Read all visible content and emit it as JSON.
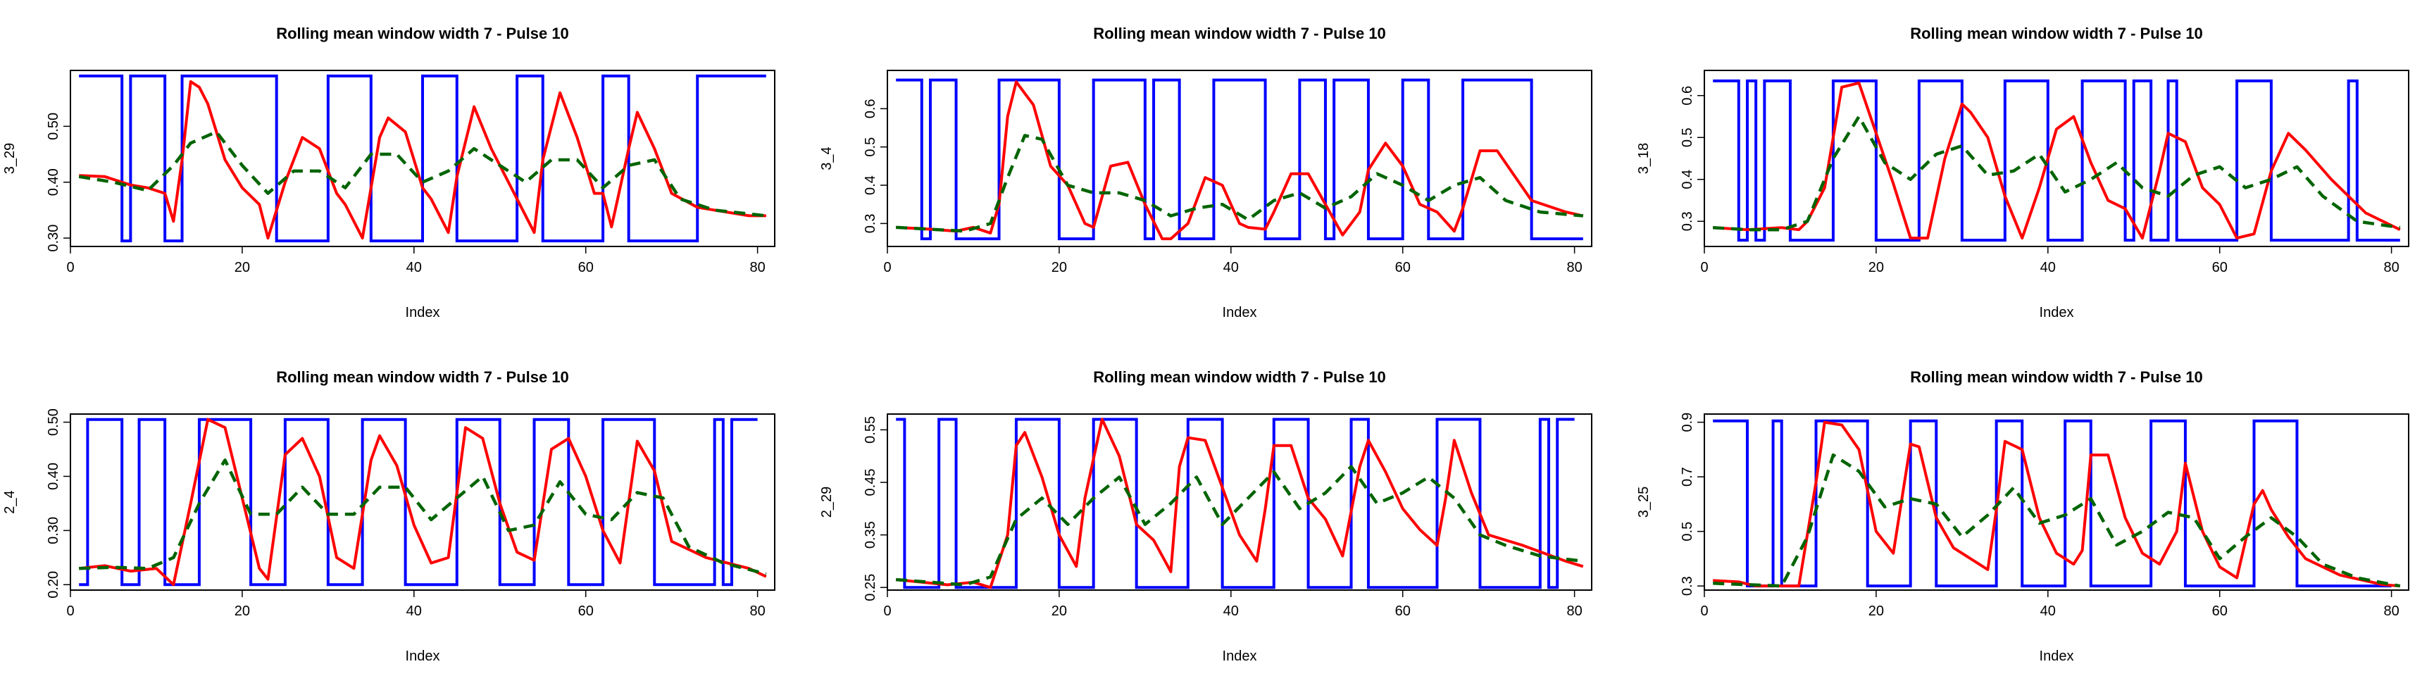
{
  "chart_data": [
    {
      "type": "line",
      "title": "Rolling mean window width 7 - Pulse 10",
      "xlabel": "Index",
      "ylabel": "3_29",
      "xlim": [
        0,
        82
      ],
      "ylim": [
        0.285,
        0.6
      ],
      "x_ticks": [
        0,
        20,
        40,
        60,
        80
      ],
      "y_ticks": [
        0.3,
        0.4,
        0.5
      ],
      "y_tick_labels": [
        "0.30",
        "0.40",
        "0.50"
      ],
      "pulse": {
        "low": 0.295,
        "high": 0.59,
        "trans": [
          1,
          6,
          7,
          11,
          13,
          24,
          30,
          35,
          41,
          45,
          52,
          55,
          62,
          65,
          73,
          81
        ],
        "start_state": 1
      },
      "red": {
        "x": [
          1,
          4,
          7,
          9,
          11,
          12,
          13,
          14,
          15,
          16,
          18,
          20,
          22,
          23,
          25,
          27,
          29,
          31,
          32,
          34,
          36,
          37,
          39,
          41,
          42,
          44,
          45,
          47,
          49,
          51,
          52,
          54,
          55,
          57,
          59,
          61,
          62,
          63,
          65,
          66,
          68,
          70,
          73,
          75,
          79,
          81
        ],
        "y": [
          0.412,
          0.41,
          0.395,
          0.39,
          0.38,
          0.33,
          0.44,
          0.58,
          0.57,
          0.54,
          0.44,
          0.39,
          0.36,
          0.3,
          0.4,
          0.48,
          0.46,
          0.38,
          0.36,
          0.3,
          0.48,
          0.515,
          0.49,
          0.39,
          0.37,
          0.31,
          0.41,
          0.535,
          0.46,
          0.4,
          0.37,
          0.31,
          0.44,
          0.56,
          0.48,
          0.38,
          0.38,
          0.32,
          0.46,
          0.525,
          0.46,
          0.38,
          0.355,
          0.35,
          0.34,
          0.34
        ]
      },
      "green": {
        "x": [
          1,
          5,
          9,
          12,
          14,
          17,
          20,
          23,
          26,
          29,
          32,
          35,
          38,
          41,
          44,
          47,
          50,
          53,
          56,
          59,
          62,
          65,
          68,
          71,
          75,
          81
        ],
        "y": [
          0.41,
          0.4,
          0.385,
          0.43,
          0.47,
          0.49,
          0.43,
          0.38,
          0.42,
          0.42,
          0.39,
          0.45,
          0.45,
          0.4,
          0.42,
          0.46,
          0.43,
          0.4,
          0.44,
          0.44,
          0.39,
          0.43,
          0.44,
          0.37,
          0.35,
          0.34
        ]
      }
    },
    {
      "type": "line",
      "title": "Rolling mean window width 7 - Pulse 10",
      "xlabel": "Index",
      "ylabel": "3_4",
      "xlim": [
        0,
        82
      ],
      "ylim": [
        0.24,
        0.7
      ],
      "x_ticks": [
        0,
        20,
        40,
        60,
        80
      ],
      "y_ticks": [
        0.3,
        0.4,
        0.5,
        0.6
      ],
      "y_tick_labels": [
        "0.3",
        "0.4",
        "0.5",
        "0.6"
      ],
      "pulse": {
        "low": 0.26,
        "high": 0.675,
        "trans": [
          1,
          4,
          5,
          8,
          13,
          20,
          24,
          30,
          31,
          34,
          38,
          44,
          48,
          51,
          52,
          56,
          60,
          63,
          67,
          75,
          81
        ],
        "start_state": 1
      },
      "red": {
        "x": [
          1,
          5,
          8,
          10,
          12,
          13,
          14,
          15,
          17,
          19,
          21,
          23,
          24,
          26,
          28,
          30,
          32,
          33,
          35,
          37,
          39,
          41,
          42,
          44,
          45,
          47,
          49,
          51,
          53,
          55,
          56,
          58,
          60,
          62,
          64,
          66,
          67,
          69,
          71,
          75,
          79,
          81
        ],
        "y": [
          0.29,
          0.285,
          0.28,
          0.29,
          0.275,
          0.35,
          0.58,
          0.67,
          0.61,
          0.45,
          0.4,
          0.3,
          0.29,
          0.45,
          0.46,
          0.35,
          0.26,
          0.26,
          0.3,
          0.42,
          0.4,
          0.3,
          0.29,
          0.285,
          0.33,
          0.43,
          0.43,
          0.35,
          0.27,
          0.33,
          0.44,
          0.51,
          0.45,
          0.35,
          0.33,
          0.28,
          0.34,
          0.49,
          0.49,
          0.36,
          0.33,
          0.32
        ]
      },
      "green": {
        "x": [
          1,
          5,
          9,
          12,
          14,
          16,
          18,
          21,
          24,
          27,
          30,
          33,
          36,
          39,
          42,
          45,
          48,
          51,
          54,
          57,
          60,
          63,
          66,
          69,
          72,
          76,
          81
        ],
        "y": [
          0.29,
          0.285,
          0.28,
          0.3,
          0.42,
          0.53,
          0.52,
          0.4,
          0.38,
          0.38,
          0.36,
          0.32,
          0.34,
          0.35,
          0.31,
          0.36,
          0.38,
          0.34,
          0.37,
          0.43,
          0.4,
          0.36,
          0.4,
          0.42,
          0.36,
          0.33,
          0.32
        ]
      }
    },
    {
      "type": "line",
      "title": "Rolling mean window width 7 - Pulse 10",
      "xlabel": "Index",
      "ylabel": "3_18",
      "xlim": [
        0,
        82
      ],
      "ylim": [
        0.24,
        0.66
      ],
      "x_ticks": [
        0,
        20,
        40,
        60,
        80
      ],
      "y_ticks": [
        0.3,
        0.4,
        0.5,
        0.6
      ],
      "y_tick_labels": [
        "0.3",
        "0.4",
        "0.5",
        "0.6"
      ],
      "pulse": {
        "low": 0.255,
        "high": 0.635,
        "trans": [
          1,
          4,
          5,
          6,
          7,
          10,
          15,
          20,
          25,
          30,
          35,
          40,
          44,
          49,
          50,
          52,
          54,
          55,
          62,
          66,
          75,
          76,
          81
        ],
        "start_state": 1
      },
      "red": {
        "x": [
          1,
          5,
          9,
          11,
          12,
          14,
          16,
          18,
          20,
          22,
          24,
          26,
          28,
          30,
          31,
          33,
          35,
          37,
          39,
          41,
          43,
          45,
          47,
          49,
          51,
          53,
          54,
          56,
          58,
          60,
          62,
          64,
          66,
          68,
          70,
          73,
          77,
          81
        ],
        "y": [
          0.285,
          0.28,
          0.285,
          0.28,
          0.3,
          0.38,
          0.62,
          0.63,
          0.51,
          0.39,
          0.26,
          0.26,
          0.45,
          0.58,
          0.56,
          0.5,
          0.36,
          0.26,
          0.38,
          0.52,
          0.55,
          0.44,
          0.35,
          0.33,
          0.26,
          0.42,
          0.51,
          0.49,
          0.38,
          0.34,
          0.26,
          0.27,
          0.42,
          0.51,
          0.47,
          0.4,
          0.32,
          0.28
        ]
      },
      "green": {
        "x": [
          1,
          5,
          9,
          12,
          15,
          18,
          21,
          24,
          27,
          30,
          33,
          36,
          39,
          42,
          45,
          48,
          51,
          54,
          57,
          60,
          63,
          66,
          69,
          72,
          76,
          81
        ],
        "y": [
          0.285,
          0.28,
          0.28,
          0.3,
          0.45,
          0.55,
          0.44,
          0.4,
          0.46,
          0.48,
          0.41,
          0.42,
          0.46,
          0.37,
          0.4,
          0.44,
          0.38,
          0.36,
          0.41,
          0.43,
          0.38,
          0.4,
          0.43,
          0.36,
          0.3,
          0.285
        ]
      }
    },
    {
      "type": "line",
      "title": "Rolling mean window width 7 - Pulse 10",
      "xlabel": "Index",
      "ylabel": "2_4",
      "xlim": [
        0,
        82
      ],
      "ylim": [
        0.19,
        0.515
      ],
      "x_ticks": [
        0,
        20,
        40,
        60,
        80
      ],
      "y_ticks": [
        0.2,
        0.3,
        0.4,
        0.5
      ],
      "y_tick_labels": [
        "0.20",
        "0.30",
        "0.40",
        "0.50"
      ],
      "pulse": {
        "low": 0.2,
        "high": 0.505,
        "trans": [
          1,
          2,
          6,
          8,
          11,
          15,
          21,
          25,
          30,
          34,
          39,
          45,
          50,
          54,
          58,
          62,
          68,
          75,
          76,
          77,
          80
        ],
        "start_state": 0
      },
      "red": {
        "x": [
          1,
          4,
          7,
          10,
          12,
          14,
          16,
          18,
          20,
          22,
          23,
          25,
          27,
          29,
          31,
          33,
          35,
          36,
          38,
          40,
          42,
          44,
          46,
          48,
          50,
          52,
          54,
          56,
          58,
          60,
          62,
          64,
          66,
          68,
          70,
          74,
          79,
          81
        ],
        "y": [
          0.23,
          0.235,
          0.225,
          0.23,
          0.2,
          0.35,
          0.505,
          0.49,
          0.36,
          0.23,
          0.21,
          0.44,
          0.47,
          0.4,
          0.25,
          0.23,
          0.43,
          0.475,
          0.42,
          0.31,
          0.24,
          0.25,
          0.49,
          0.47,
          0.35,
          0.26,
          0.245,
          0.45,
          0.47,
          0.4,
          0.3,
          0.24,
          0.465,
          0.41,
          0.28,
          0.25,
          0.23,
          0.215
        ]
      },
      "green": {
        "x": [
          1,
          5,
          9,
          12,
          15,
          18,
          21,
          24,
          27,
          30,
          33,
          36,
          39,
          42,
          45,
          48,
          51,
          54,
          57,
          60,
          63,
          66,
          69,
          72,
          76,
          81
        ],
        "y": [
          0.23,
          0.232,
          0.23,
          0.25,
          0.35,
          0.43,
          0.33,
          0.33,
          0.38,
          0.33,
          0.33,
          0.38,
          0.38,
          0.32,
          0.36,
          0.4,
          0.3,
          0.31,
          0.39,
          0.33,
          0.32,
          0.37,
          0.36,
          0.27,
          0.24,
          0.22
        ]
      }
    },
    {
      "type": "line",
      "title": "Rolling mean window width 7 - Pulse 10",
      "xlabel": "Index",
      "ylabel": "2_29",
      "xlim": [
        0,
        82
      ],
      "ylim": [
        0.245,
        0.58
      ],
      "x_ticks": [
        0,
        20,
        40,
        60,
        80
      ],
      "y_ticks": [
        0.25,
        0.35,
        0.45,
        0.55
      ],
      "y_tick_labels": [
        "0.25",
        "0.35",
        "0.45",
        "0.55"
      ],
      "pulse": {
        "low": 0.25,
        "high": 0.57,
        "trans": [
          1,
          2,
          6,
          8,
          15,
          20,
          24,
          29,
          35,
          39,
          45,
          49,
          54,
          56,
          64,
          69,
          76,
          77,
          78,
          80
        ],
        "start_state": 1
      },
      "red": {
        "x": [
          1,
          4,
          7,
          10,
          12,
          14,
          15,
          16,
          18,
          20,
          22,
          23,
          25,
          27,
          29,
          31,
          33,
          34,
          35,
          37,
          39,
          41,
          43,
          44,
          45,
          47,
          49,
          51,
          53,
          55,
          56,
          58,
          60,
          62,
          64,
          65,
          66,
          68,
          70,
          74,
          79,
          81
        ],
        "y": [
          0.265,
          0.26,
          0.255,
          0.26,
          0.25,
          0.35,
          0.52,
          0.545,
          0.46,
          0.35,
          0.29,
          0.42,
          0.57,
          0.5,
          0.37,
          0.34,
          0.28,
          0.48,
          0.535,
          0.53,
          0.44,
          0.35,
          0.3,
          0.4,
          0.52,
          0.52,
          0.42,
          0.38,
          0.31,
          0.48,
          0.53,
          0.47,
          0.4,
          0.36,
          0.33,
          0.42,
          0.53,
          0.43,
          0.35,
          0.33,
          0.3,
          0.29
        ]
      },
      "green": {
        "x": [
          1,
          5,
          9,
          12,
          15,
          18,
          21,
          24,
          27,
          30,
          33,
          36,
          39,
          42,
          45,
          48,
          51,
          54,
          57,
          60,
          63,
          66,
          69,
          72,
          76,
          81
        ],
        "y": [
          0.265,
          0.26,
          0.255,
          0.27,
          0.38,
          0.42,
          0.37,
          0.42,
          0.46,
          0.37,
          0.41,
          0.46,
          0.37,
          0.42,
          0.47,
          0.4,
          0.43,
          0.48,
          0.41,
          0.43,
          0.46,
          0.42,
          0.35,
          0.33,
          0.31,
          0.3
        ]
      }
    },
    {
      "type": "line",
      "title": "Rolling mean window width 7 - Pulse 10",
      "xlabel": "Index",
      "ylabel": "3_25",
      "xlim": [
        0,
        82
      ],
      "ylim": [
        0.285,
        0.93
      ],
      "x_ticks": [
        0,
        20,
        40,
        60,
        80
      ],
      "y_ticks": [
        0.3,
        0.5,
        0.7,
        0.9
      ],
      "y_tick_labels": [
        "0.3",
        "0.5",
        "0.7",
        "0.9"
      ],
      "pulse": {
        "low": 0.3,
        "high": 0.905,
        "trans": [
          1,
          5,
          8,
          9,
          13,
          19,
          24,
          27,
          34,
          37,
          42,
          45,
          52,
          56,
          64,
          69,
          80
        ],
        "start_state": 1
      },
      "red": {
        "x": [
          1,
          4,
          6,
          9,
          11,
          13,
          14,
          16,
          18,
          20,
          22,
          24,
          25,
          27,
          29,
          31,
          33,
          34,
          35,
          37,
          39,
          41,
          43,
          44,
          45,
          47,
          49,
          51,
          53,
          55,
          56,
          58,
          60,
          62,
          64,
          65,
          66,
          68,
          70,
          74,
          79,
          81
        ],
        "y": [
          0.32,
          0.315,
          0.3,
          0.3,
          0.3,
          0.68,
          0.9,
          0.89,
          0.8,
          0.5,
          0.42,
          0.82,
          0.81,
          0.55,
          0.44,
          0.4,
          0.36,
          0.58,
          0.83,
          0.8,
          0.55,
          0.42,
          0.38,
          0.43,
          0.78,
          0.78,
          0.55,
          0.42,
          0.38,
          0.5,
          0.75,
          0.5,
          0.37,
          0.33,
          0.6,
          0.65,
          0.58,
          0.48,
          0.4,
          0.34,
          0.305,
          0.3
        ]
      },
      "green": {
        "x": [
          1,
          5,
          9,
          12,
          15,
          18,
          21,
          24,
          27,
          30,
          33,
          36,
          39,
          42,
          45,
          48,
          51,
          54,
          57,
          60,
          63,
          66,
          69,
          72,
          76,
          81
        ],
        "y": [
          0.31,
          0.305,
          0.3,
          0.48,
          0.78,
          0.72,
          0.59,
          0.62,
          0.6,
          0.48,
          0.56,
          0.66,
          0.53,
          0.56,
          0.62,
          0.45,
          0.5,
          0.57,
          0.55,
          0.4,
          0.48,
          0.55,
          0.48,
          0.38,
          0.33,
          0.3
        ]
      }
    }
  ]
}
